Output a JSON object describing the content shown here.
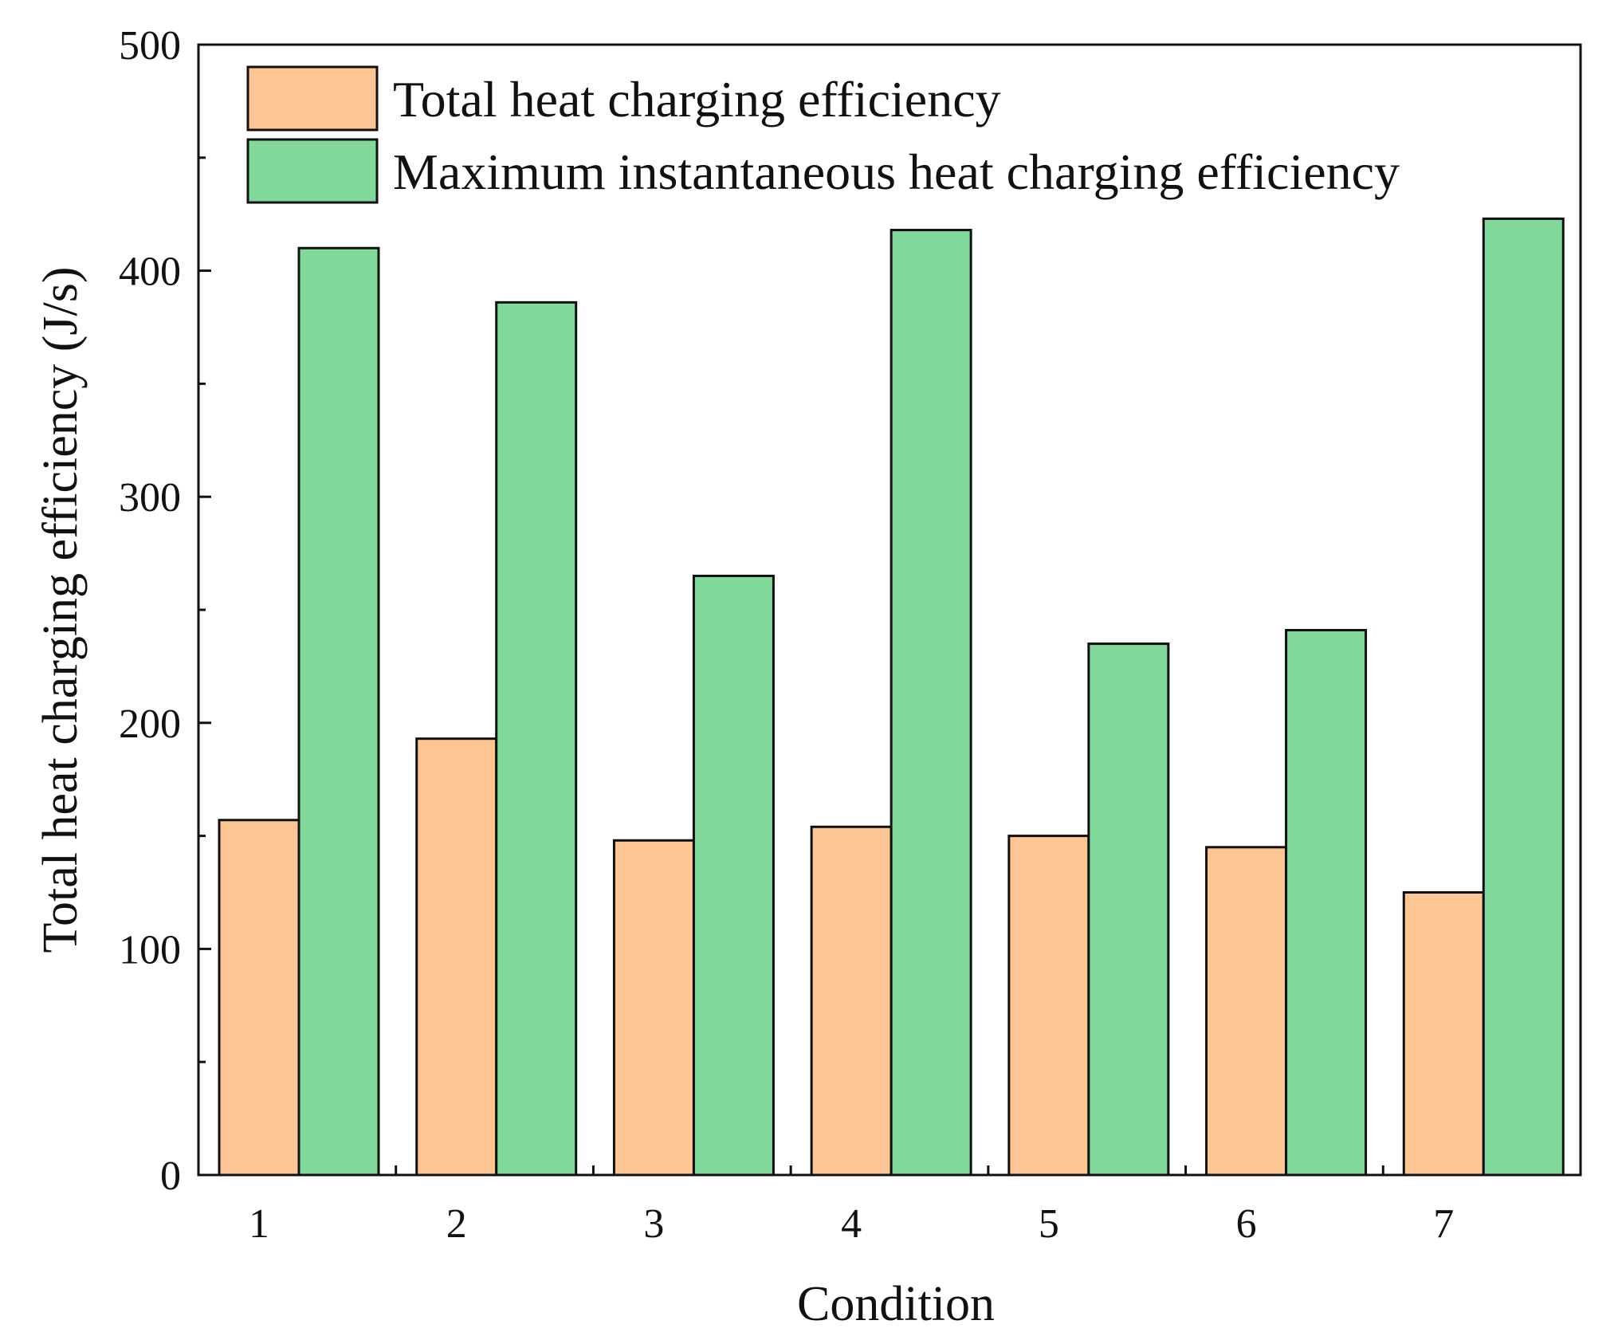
{
  "chart_data": {
    "type": "bar",
    "title": "",
    "xlabel": "Condition",
    "ylabel": "Total heat charging efficiency (J/s)",
    "categories": [
      "1",
      "2",
      "3",
      "4",
      "5",
      "6",
      "7"
    ],
    "series": [
      {
        "name": "Total heat charging efficiency",
        "color": "#FDC593",
        "values": [
          157,
          193,
          148,
          154,
          150,
          145,
          125
        ]
      },
      {
        "name": "Maximum instantaneous heat charging efficiency",
        "color": "#80D89A",
        "values": [
          410,
          386,
          265,
          418,
          235,
          241,
          423
        ]
      }
    ],
    "ylim": [
      0,
      500
    ],
    "yticks": [
      "0",
      "100",
      "200",
      "300",
      "400",
      "500"
    ],
    "grid": false,
    "legend_position": "top-left"
  }
}
